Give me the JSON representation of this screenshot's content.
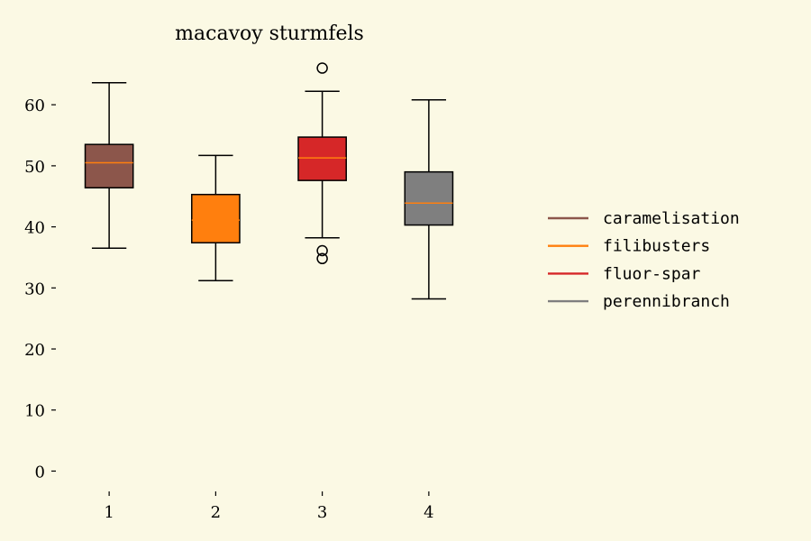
{
  "chart_data": {
    "type": "box",
    "title": "macavoy sturmfels",
    "xlabel": "",
    "ylabel": "",
    "grid": false,
    "legend_position": "right",
    "ylim": [
      -2,
      68
    ],
    "yticks": [
      0,
      10,
      20,
      30,
      40,
      50,
      60
    ],
    "categories": [
      "1",
      "2",
      "3",
      "4"
    ],
    "series": [
      {
        "name": "caramelisation",
        "color": "#8c564b",
        "whisker_low": 36.5,
        "q1": 46.4,
        "median": 50.5,
        "q3": 53.5,
        "whisker_high": 63.6,
        "outliers": []
      },
      {
        "name": "filibusters",
        "color": "#ff7f0e",
        "whisker_low": 31.2,
        "q1": 37.4,
        "median": 41.1,
        "q3": 45.3,
        "whisker_high": 51.7,
        "outliers": []
      },
      {
        "name": "fluor-spar",
        "color": "#d62728",
        "whisker_low": 38.2,
        "q1": 47.6,
        "median": 51.3,
        "q3": 54.7,
        "whisker_high": 62.2,
        "outliers": [
          66.0,
          36.1,
          34.8
        ]
      },
      {
        "name": "perennibranch",
        "color": "#7f7f7f",
        "whisker_low": 28.2,
        "q1": 40.3,
        "median": 43.9,
        "q3": 49.0,
        "whisker_high": 60.8,
        "outliers": []
      }
    ],
    "median_color": "#ff7f0e"
  }
}
